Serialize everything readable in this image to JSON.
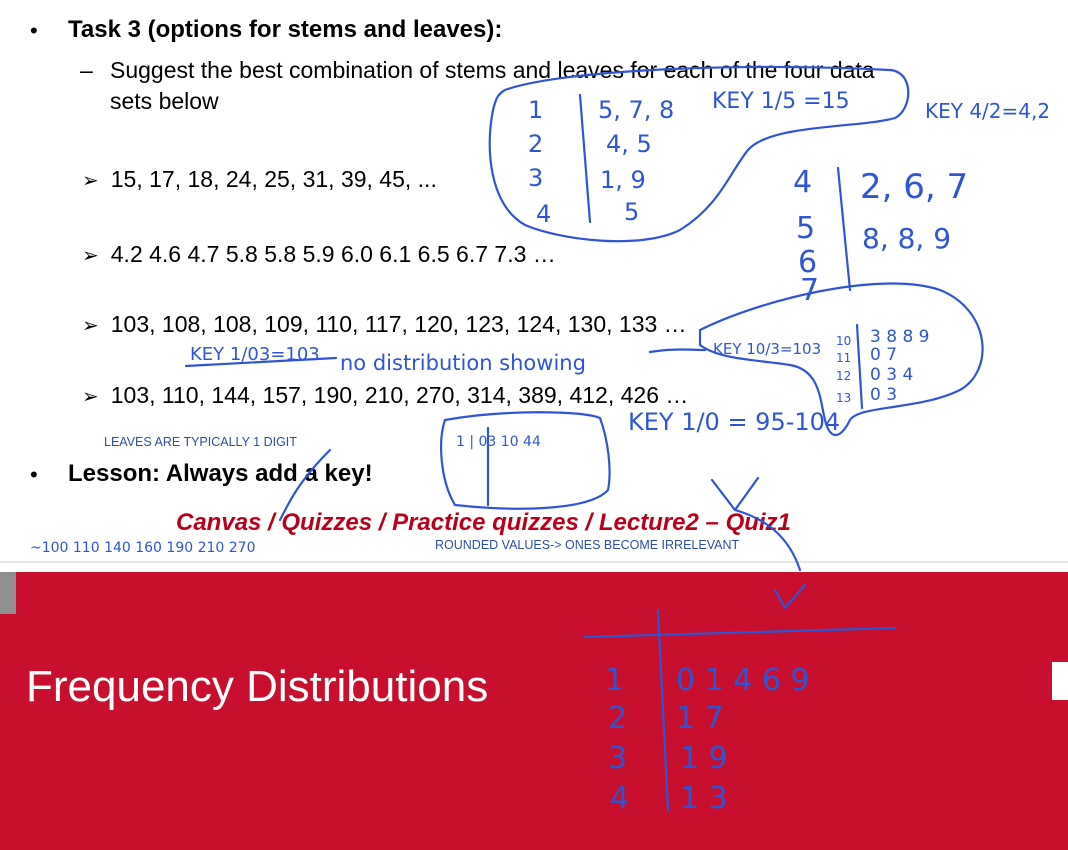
{
  "slide": {
    "task_title": "Task 3 (options for stems and leaves):",
    "subtask_line1": "Suggest the best combination of stems and leaves for each of the four data",
    "subtask_line2": "sets below",
    "datasets": [
      "15, 17, 18, 24, 25, 31, 39, 45,  ...",
      "4.2   4.6   4.7   5.8   5.8   5.9   6.0   6.1   6.5   6.7   7.3 …",
      "103, 108, 108, 109, 110, 117, 120, 123, 124, 130, 133 …",
      "103, 110, 144, 157, 190, 210, 270, 314, 389, 412, 426 …"
    ],
    "leaves_note": "LEAVES ARE TYPICALLY 1 DIGIT",
    "lesson": "Lesson: Always add a key!",
    "canvas_link": "Canvas / Quizzes / Practice quizzes / Lecture2 – Quiz1",
    "rounded_note": "ROUNDED VALUES-> ONES BECOME IRRELEVANT"
  },
  "banner": {
    "title": "Frequency Distributions",
    "color": "#c8102e"
  },
  "annotations": {
    "key1": "KEY 1/5 =15",
    "key2": "KEY 4/2=4,2",
    "key3": "KEY 1/03=103",
    "no_distribution": "no distribution showing",
    "key4": "KEY 10/3=103",
    "key5": "KEY 1/0 = 95-104",
    "rounded_values": "~100   110   140   160   190   210   270",
    "stem1": [
      "1",
      "2",
      "3",
      "4"
    ],
    "leaves1": [
      "5, 7, 8",
      "4, 5",
      "1, 9",
      "5"
    ],
    "stem2": [
      "4",
      "5",
      "6",
      "7"
    ],
    "leaves2": [
      "2, 6, 7",
      "8, 8, 9"
    ],
    "stem3": [
      "10",
      "11",
      "12",
      "13"
    ],
    "leaves3": [
      "3 8 8 9",
      "0 7",
      "0 3 4",
      "0 3"
    ],
    "box_row": "1 | 03  10  44",
    "stem4": [
      "1",
      "2",
      "3",
      "4"
    ],
    "leaves4": [
      "0 1 4 6 9",
      "1 7",
      "1 9",
      "1 3"
    ]
  }
}
